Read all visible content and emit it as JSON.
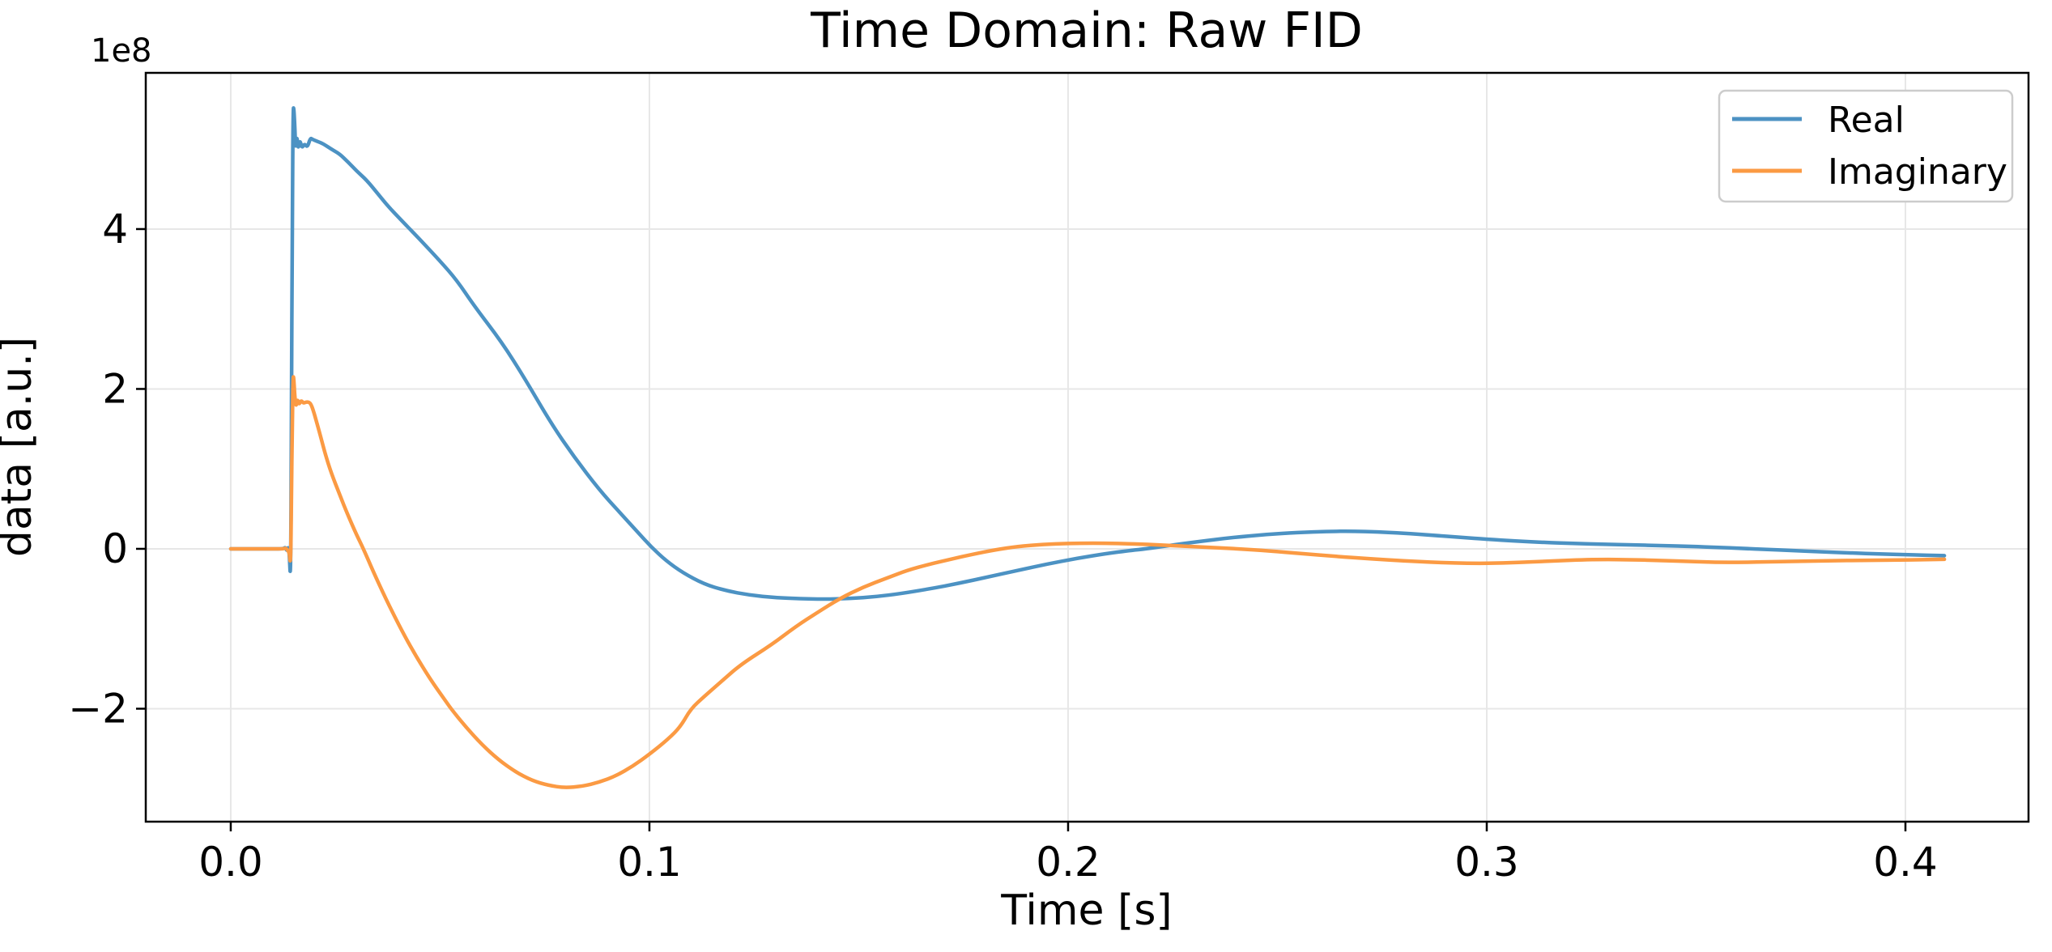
{
  "figure": {
    "title": "Time Domain: Raw FID",
    "xlabel": "Time [s]",
    "ylabel": "data [a.u.]",
    "offset_text": "1e8",
    "background_color": "#ffffff",
    "grid_color": "#e7e7e7",
    "spine_color": "#000000",
    "legend": {
      "position": "upper right",
      "border_color": "#cccccc",
      "background_color": "#ffffff"
    }
  },
  "chart_data": {
    "type": "line",
    "title": "Time Domain: Raw FID",
    "xlabel": "Time [s]",
    "ylabel": "data [a.u.]",
    "y_offset_scale": "1e8",
    "grid": true,
    "legend_position": "upper right",
    "xlim": [
      -0.0203,
      0.4294
    ],
    "ylim_1e8": [
      -3.413,
      5.954
    ],
    "x_ticks": [
      0.0,
      0.1,
      0.2,
      0.3,
      0.4
    ],
    "x_tick_labels": [
      "0.0",
      "0.1",
      "0.2",
      "0.3",
      "0.4"
    ],
    "y_ticks_1e8": [
      4,
      2,
      0,
      -2
    ],
    "y_tick_labels": [
      "4",
      "2",
      "0",
      "−2"
    ],
    "series": [
      {
        "name": "Real",
        "color": "#4c92c3",
        "points_t_v1e8": [
          [
            0,
            0
          ],
          [
            0.005,
            0
          ],
          [
            0.01,
            0
          ],
          [
            0.0125,
            0
          ],
          [
            0.0131,
            0.02
          ],
          [
            0.0134,
            -0.03
          ],
          [
            0.0137,
            0.03
          ],
          [
            0.014,
            -0.06
          ],
          [
            0.0143,
            -0.44
          ],
          [
            0.0145,
            1.5
          ],
          [
            0.0147,
            4.2
          ],
          [
            0.0149,
            5.53
          ],
          [
            0.0151,
            5.5
          ],
          [
            0.0153,
            5.28
          ],
          [
            0.0155,
            4.98
          ],
          [
            0.0158,
            5.18
          ],
          [
            0.0161,
            4.99
          ],
          [
            0.0165,
            5.12
          ],
          [
            0.017,
            5.01
          ],
          [
            0.0176,
            5.07
          ],
          [
            0.0183,
            5.02
          ],
          [
            0.019,
            5.14
          ],
          [
            0.0196,
            5.12
          ],
          [
            0.0205,
            5.1
          ],
          [
            0.022,
            5.07
          ],
          [
            0.024,
            5.0
          ],
          [
            0.026,
            4.94
          ],
          [
            0.028,
            4.84
          ],
          [
            0.03,
            4.73
          ],
          [
            0.0325,
            4.61
          ],
          [
            0.035,
            4.45
          ],
          [
            0.0375,
            4.29
          ],
          [
            0.04,
            4.15
          ],
          [
            0.045,
            3.88
          ],
          [
            0.05,
            3.6
          ],
          [
            0.054,
            3.36
          ],
          [
            0.058,
            3.05
          ],
          [
            0.0648,
            2.58
          ],
          [
            0.07,
            2.15
          ],
          [
            0.0765,
            1.57
          ],
          [
            0.082,
            1.15
          ],
          [
            0.088,
            0.74
          ],
          [
            0.093,
            0.45
          ],
          [
            0.097,
            0.22
          ],
          [
            0.1005,
            0.02
          ],
          [
            0.104,
            -0.15
          ],
          [
            0.108,
            -0.3
          ],
          [
            0.113,
            -0.44
          ],
          [
            0.118,
            -0.52
          ],
          [
            0.124,
            -0.58
          ],
          [
            0.13,
            -0.61
          ],
          [
            0.136,
            -0.625
          ],
          [
            0.142,
            -0.63
          ],
          [
            0.148,
            -0.62
          ],
          [
            0.154,
            -0.6
          ],
          [
            0.16,
            -0.56
          ],
          [
            0.167,
            -0.5
          ],
          [
            0.174,
            -0.43
          ],
          [
            0.181,
            -0.35
          ],
          [
            0.188,
            -0.27
          ],
          [
            0.195,
            -0.19
          ],
          [
            0.202,
            -0.12
          ],
          [
            0.209,
            -0.06
          ],
          [
            0.215,
            -0.02
          ],
          [
            0.2185,
            0.0
          ],
          [
            0.224,
            0.04
          ],
          [
            0.231,
            0.09
          ],
          [
            0.239,
            0.14
          ],
          [
            0.247,
            0.18
          ],
          [
            0.255,
            0.205
          ],
          [
            0.262,
            0.218
          ],
          [
            0.268,
            0.22
          ],
          [
            0.274,
            0.212
          ],
          [
            0.28,
            0.195
          ],
          [
            0.287,
            0.17
          ],
          [
            0.294,
            0.143
          ],
          [
            0.3,
            0.12
          ],
          [
            0.307,
            0.098
          ],
          [
            0.314,
            0.08
          ],
          [
            0.321,
            0.066
          ],
          [
            0.328,
            0.056
          ],
          [
            0.335,
            0.048
          ],
          [
            0.342,
            0.04
          ],
          [
            0.349,
            0.03
          ],
          [
            0.355,
            0.018
          ],
          [
            0.361,
            0.006
          ],
          [
            0.367,
            -0.008
          ],
          [
            0.373,
            -0.022
          ],
          [
            0.38,
            -0.038
          ],
          [
            0.387,
            -0.052
          ],
          [
            0.394,
            -0.064
          ],
          [
            0.4,
            -0.073
          ],
          [
            0.405,
            -0.08
          ],
          [
            0.4093,
            -0.085
          ]
        ]
      },
      {
        "name": "Imaginary",
        "color": "#fb9a43",
        "points_t_v1e8": [
          [
            0,
            0
          ],
          [
            0.005,
            0
          ],
          [
            0.01,
            0
          ],
          [
            0.0125,
            0
          ],
          [
            0.0132,
            0.01
          ],
          [
            0.0136,
            -0.02
          ],
          [
            0.014,
            -0.05
          ],
          [
            0.0143,
            -0.22
          ],
          [
            0.0145,
            0.6
          ],
          [
            0.0147,
            1.6
          ],
          [
            0.0149,
            2.19
          ],
          [
            0.0151,
            2.1
          ],
          [
            0.0153,
            1.9
          ],
          [
            0.0156,
            1.77
          ],
          [
            0.0159,
            1.88
          ],
          [
            0.0163,
            1.8
          ],
          [
            0.0168,
            1.86
          ],
          [
            0.0174,
            1.82
          ],
          [
            0.0181,
            1.84
          ],
          [
            0.019,
            1.83
          ],
          [
            0.0198,
            1.72
          ],
          [
            0.0207,
            1.55
          ],
          [
            0.0216,
            1.38
          ],
          [
            0.0226,
            1.18
          ],
          [
            0.024,
            0.95
          ],
          [
            0.026,
            0.68
          ],
          [
            0.028,
            0.42
          ],
          [
            0.03,
            0.18
          ],
          [
            0.0317,
            0.0
          ],
          [
            0.034,
            -0.28
          ],
          [
            0.037,
            -0.62
          ],
          [
            0.0406,
            -1.0
          ],
          [
            0.044,
            -1.32
          ],
          [
            0.0475,
            -1.62
          ],
          [
            0.051,
            -1.88
          ],
          [
            0.0526,
            -2.0
          ],
          [
            0.056,
            -2.22
          ],
          [
            0.06,
            -2.45
          ],
          [
            0.064,
            -2.64
          ],
          [
            0.068,
            -2.79
          ],
          [
            0.072,
            -2.9
          ],
          [
            0.076,
            -2.96
          ],
          [
            0.0797,
            -2.99
          ],
          [
            0.084,
            -2.97
          ],
          [
            0.088,
            -2.92
          ],
          [
            0.092,
            -2.84
          ],
          [
            0.096,
            -2.72
          ],
          [
            0.1,
            -2.57
          ],
          [
            0.1045,
            -2.38
          ],
          [
            0.1075,
            -2.22
          ],
          [
            0.1099,
            -2.0
          ],
          [
            0.113,
            -1.85
          ],
          [
            0.1176,
            -1.64
          ],
          [
            0.122,
            -1.44
          ],
          [
            0.1292,
            -1.2
          ],
          [
            0.135,
            -0.97
          ],
          [
            0.14,
            -0.8
          ],
          [
            0.1455,
            -0.62
          ],
          [
            0.151,
            -0.48
          ],
          [
            0.157,
            -0.36
          ],
          [
            0.1615,
            -0.27
          ],
          [
            0.167,
            -0.19
          ],
          [
            0.172,
            -0.13
          ],
          [
            0.177,
            -0.07
          ],
          [
            0.1828,
            -0.01
          ],
          [
            0.188,
            0.03
          ],
          [
            0.194,
            0.055
          ],
          [
            0.2,
            0.068
          ],
          [
            0.206,
            0.072
          ],
          [
            0.212,
            0.068
          ],
          [
            0.219,
            0.055
          ],
          [
            0.226,
            0.038
          ],
          [
            0.233,
            0.02
          ],
          [
            0.2408,
            0.0
          ],
          [
            0.248,
            -0.025
          ],
          [
            0.256,
            -0.06
          ],
          [
            0.264,
            -0.095
          ],
          [
            0.272,
            -0.125
          ],
          [
            0.28,
            -0.15
          ],
          [
            0.288,
            -0.17
          ],
          [
            0.2965,
            -0.183
          ],
          [
            0.304,
            -0.178
          ],
          [
            0.311,
            -0.163
          ],
          [
            0.318,
            -0.147
          ],
          [
            0.3226,
            -0.138
          ],
          [
            0.328,
            -0.133
          ],
          [
            0.334,
            -0.136
          ],
          [
            0.341,
            -0.145
          ],
          [
            0.348,
            -0.157
          ],
          [
            0.3545,
            -0.168
          ],
          [
            0.361,
            -0.168
          ],
          [
            0.368,
            -0.162
          ],
          [
            0.375,
            -0.155
          ],
          [
            0.382,
            -0.149
          ],
          [
            0.39,
            -0.144
          ],
          [
            0.398,
            -0.14
          ],
          [
            0.404,
            -0.136
          ],
          [
            0.4093,
            -0.131
          ]
        ]
      }
    ]
  }
}
